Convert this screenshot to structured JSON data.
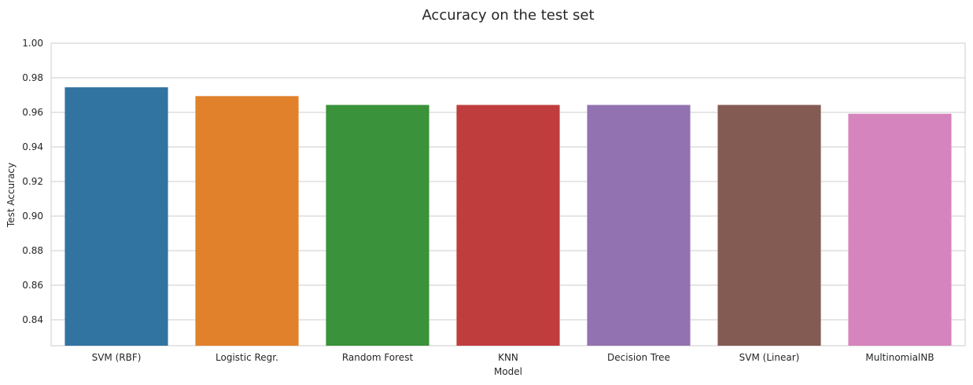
{
  "chart_data": {
    "type": "bar",
    "title": "Accuracy on the test set",
    "xlabel": "Model",
    "ylabel": "Test Accuracy",
    "categories": [
      "SVM (RBF)",
      "Logistic Regr.",
      "Random Forest",
      "KNN",
      "Decision Tree",
      "SVM (Linear)",
      "MultinomialNB"
    ],
    "values": [
      0.9745,
      0.9694,
      0.9643,
      0.9643,
      0.9643,
      0.9643,
      0.9592
    ],
    "colors": [
      "#3274a1",
      "#e1812c",
      "#3a923a",
      "#c03d3e",
      "#9372b2",
      "#845b53",
      "#d684bd"
    ],
    "ylim": [
      0.825,
      1.0
    ],
    "yticks": [
      "0.84",
      "0.86",
      "0.88",
      "0.90",
      "0.92",
      "0.94",
      "0.96",
      "0.98",
      "1.00"
    ],
    "grid": true,
    "grid_axis": "y"
  }
}
